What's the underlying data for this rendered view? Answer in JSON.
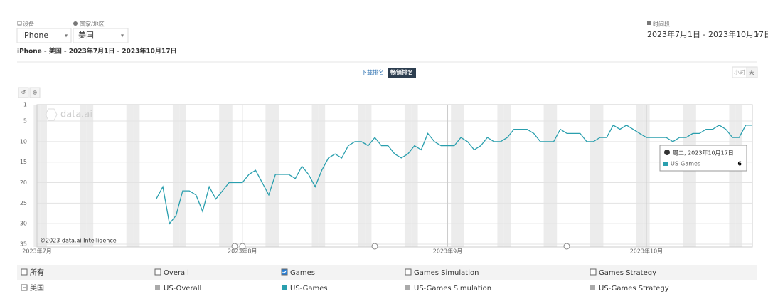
{
  "controls": {
    "device_label": "设备",
    "device": "iPhone",
    "country_label": "国家/地区",
    "country": "美国",
    "period_label": "时间段",
    "period": "2023年7月1日 - 2023年10月17日"
  },
  "subtitle": "iPhone - 美国 - 2023年7月1日 - 2023年10月17日",
  "tabs": [
    "下载排名",
    "畅销排名"
  ],
  "granularity": [
    "小时",
    "天"
  ],
  "watermark": "data.ai",
  "copyright": "©2023 data.ai Intelligence",
  "tooltip": {
    "date": "周二, 2023年10月17日",
    "series": "US-Games",
    "value": 6
  },
  "chart_data": {
    "type": "line",
    "reversed": true,
    "ylim": [
      1,
      35
    ],
    "yticks": [
      1,
      5,
      10,
      15,
      20,
      25,
      30,
      35
    ],
    "categories": [
      "2023年7月",
      null,
      null,
      null,
      null,
      null,
      null,
      null,
      null,
      null,
      null,
      null,
      null,
      null,
      null,
      null,
      null,
      null,
      null,
      null,
      null,
      null,
      null,
      null,
      null,
      null,
      null,
      null,
      null,
      null,
      null,
      "2023年8月",
      null,
      null,
      null,
      null,
      null,
      null,
      null,
      null,
      null,
      null,
      null,
      null,
      null,
      null,
      null,
      null,
      null,
      null,
      null,
      null,
      null,
      null,
      null,
      null,
      null,
      null,
      null,
      null,
      null,
      null,
      "2023年9月",
      null,
      null,
      null,
      null,
      null,
      null,
      null,
      null,
      null,
      null,
      null,
      null,
      null,
      null,
      null,
      null,
      null,
      null,
      null,
      null,
      null,
      null,
      null,
      null,
      null,
      null,
      null,
      null,
      null,
      "2023年10月",
      null,
      null,
      null,
      null,
      null,
      null,
      null,
      null,
      null,
      null,
      null,
      null,
      null,
      null,
      null,
      null
    ],
    "series": [
      {
        "name": "US-Games",
        "color": "#2a9fae",
        "values": [
          null,
          null,
          null,
          null,
          null,
          null,
          null,
          null,
          null,
          null,
          null,
          null,
          null,
          null,
          null,
          null,
          null,
          null,
          24,
          21,
          30,
          28,
          22,
          22,
          23,
          27,
          21,
          24,
          22,
          20,
          20,
          20,
          18,
          17,
          20,
          23,
          18,
          18,
          18,
          19,
          16,
          18,
          21,
          17,
          14,
          13,
          14,
          11,
          10,
          10,
          11,
          9,
          11,
          11,
          13,
          14,
          13,
          11,
          12,
          8,
          10,
          11,
          11,
          11,
          9,
          10,
          12,
          11,
          9,
          10,
          10,
          9,
          7,
          7,
          7,
          8,
          10,
          10,
          10,
          7,
          8,
          8,
          8,
          10,
          10,
          9,
          9,
          6,
          7,
          6,
          7,
          8,
          9,
          9,
          9,
          9,
          10,
          9,
          9,
          8,
          8,
          7,
          7,
          6,
          7,
          9,
          9,
          6,
          6
        ]
      }
    ]
  },
  "legend_table": {
    "rows": [
      [
        "所有",
        "Overall",
        "Games",
        "Games Simulation",
        "Games Strategy"
      ],
      [
        "美国",
        "US-Overall",
        "US-Games",
        "US-Games Simulation",
        "US-Games Strategy"
      ]
    ]
  }
}
